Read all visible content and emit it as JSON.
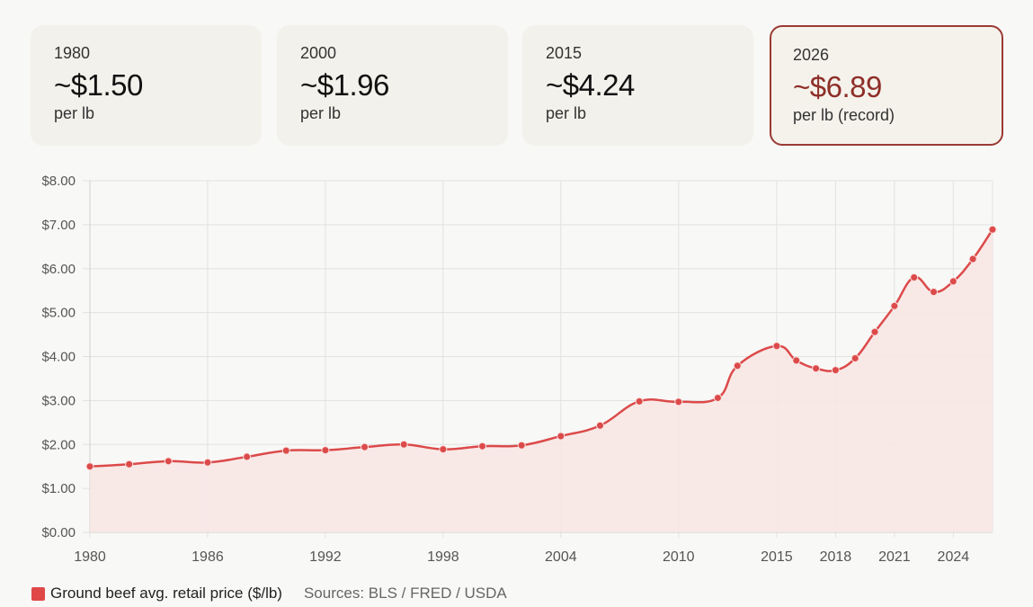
{
  "cards": [
    {
      "year": "1980",
      "price": "~$1.50",
      "unit": "per lb"
    },
    {
      "year": "2000",
      "price": "~$1.96",
      "unit": "per lb"
    },
    {
      "year": "2015",
      "price": "~$4.24",
      "unit": "per lb"
    },
    {
      "year": "2026",
      "price": "~$6.89",
      "unit": "per lb (record)"
    }
  ],
  "legend": {
    "label": "Ground beef avg. retail price ($/lb)",
    "source": "Sources: BLS / FRED / USDA"
  },
  "colors": {
    "line": "#dc4a4a",
    "fill": "#f8e6e4",
    "highlight_border": "#9b3a34",
    "highlight_text": "#8e2f28"
  },
  "chart_data": {
    "type": "line",
    "title": "",
    "xlabel": "",
    "ylabel": "",
    "ylim": [
      0,
      8
    ],
    "xlim": [
      1980,
      2026
    ],
    "grid": true,
    "legend_position": "bottom-left",
    "y_ticks": [
      "$0.00",
      "$1.00",
      "$2.00",
      "$3.00",
      "$4.00",
      "$5.00",
      "$6.00",
      "$7.00",
      "$8.00"
    ],
    "x_ticks": [
      "1980",
      "1986",
      "1992",
      "1998",
      "2004",
      "2010",
      "2015",
      "2018",
      "2021",
      "2024"
    ],
    "series": [
      {
        "name": "Ground beef avg. retail price ($/lb)",
        "x": [
          1980,
          1982,
          1984,
          1986,
          1988,
          1990,
          1992,
          1994,
          1996,
          1998,
          2000,
          2002,
          2004,
          2006,
          2008,
          2010,
          2012,
          2013,
          2015,
          2016,
          2017,
          2018,
          2019,
          2020,
          2021,
          2022,
          2023,
          2024,
          2025,
          2026
        ],
        "values": [
          1.5,
          1.55,
          1.62,
          1.59,
          1.72,
          1.86,
          1.87,
          1.94,
          2.0,
          1.89,
          1.96,
          1.98,
          2.19,
          2.43,
          2.98,
          2.97,
          3.06,
          3.79,
          4.24,
          3.91,
          3.73,
          3.69,
          3.96,
          4.56,
          5.15,
          5.8,
          5.47,
          5.71,
          6.22,
          6.89
        ]
      }
    ]
  }
}
